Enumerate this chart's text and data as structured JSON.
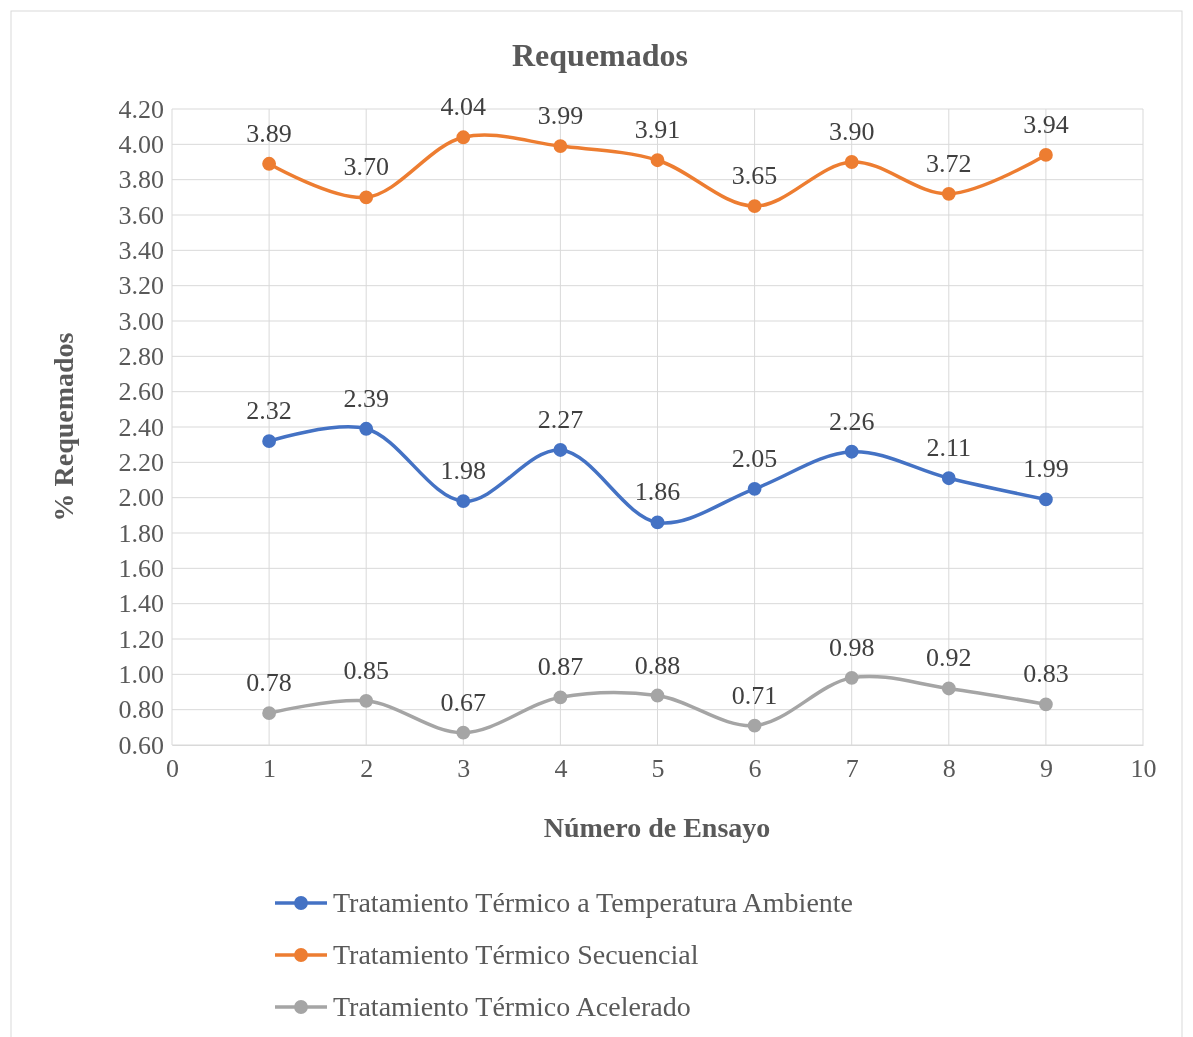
{
  "chart_data": {
    "type": "line",
    "title": "Requemados",
    "xlabel": "Número de Ensayo",
    "ylabel": "% Requemados",
    "x": [
      1,
      2,
      3,
      4,
      5,
      6,
      7,
      8,
      9
    ],
    "xlim": [
      0,
      10
    ],
    "xticks": [
      0,
      1,
      2,
      3,
      4,
      5,
      6,
      7,
      8,
      9,
      10
    ],
    "ylim": [
      0.6,
      4.2
    ],
    "yticks": [
      {
        "value": 0.6,
        "label": "0.60"
      },
      {
        "value": 0.8,
        "label": "0.80"
      },
      {
        "value": 1,
        "label": "1.00"
      },
      {
        "value": 1.2,
        "label": "1.20"
      },
      {
        "value": 1.4,
        "label": "1.40"
      },
      {
        "value": 1.6,
        "label": "1.60"
      },
      {
        "value": 1.8,
        "label": "1.80"
      },
      {
        "value": 2,
        "label": "2.00"
      },
      {
        "value": 2.2,
        "label": "2.20"
      },
      {
        "value": 2.4,
        "label": "2.40"
      },
      {
        "value": 2.6,
        "label": "2.60"
      },
      {
        "value": 2.8,
        "label": "2.80"
      },
      {
        "value": 3,
        "label": "3.00"
      },
      {
        "value": 3.2,
        "label": "3.20"
      },
      {
        "value": 3.4,
        "label": "3.40"
      },
      {
        "value": 3.6,
        "label": "3.60"
      },
      {
        "value": 3.8,
        "label": "3.80"
      },
      {
        "value": 4,
        "label": "4.00"
      },
      {
        "value": 4.2,
        "label": "4.20"
      }
    ],
    "series": [
      {
        "name": "Tratamiento Térmico a Temperatura Ambiente",
        "color": "#4472c4",
        "values": [
          2.32,
          2.39,
          1.98,
          2.27,
          1.86,
          2.05,
          2.26,
          2.11,
          1.99
        ],
        "value_labels": [
          "2.32",
          "2.39",
          "1.98",
          "2.27",
          "1.86",
          "2.05",
          "2.26",
          "2.11",
          "1.99"
        ]
      },
      {
        "name": "Tratamiento Térmico Secuencial",
        "color": "#ed7d31",
        "values": [
          3.89,
          3.7,
          4.04,
          3.99,
          3.91,
          3.65,
          3.9,
          3.72,
          3.94
        ],
        "value_labels": [
          "3.89",
          "3.70",
          "4.04",
          "3.99",
          "3.91",
          "3.65",
          "3.90",
          "3.72",
          "3.94"
        ]
      },
      {
        "name": "Tratamiento Térmico Acelerado",
        "color": "#a5a5a5",
        "values": [
          0.78,
          0.85,
          0.67,
          0.87,
          0.88,
          0.71,
          0.98,
          0.92,
          0.83
        ],
        "value_labels": [
          "0.78",
          "0.85",
          "0.67",
          "0.87",
          "0.88",
          "0.71",
          "0.98",
          "0.92",
          "0.83"
        ]
      }
    ],
    "grid": true,
    "legend": "bottom",
    "marker": "circle",
    "line_style": "solid"
  }
}
